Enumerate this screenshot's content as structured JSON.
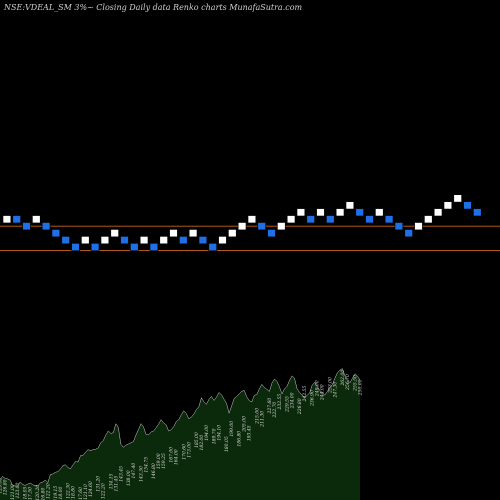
{
  "title": "NSE:VDEAL_SM  3%~  Closing Daily data  Renko  charts MunafaSutra.com",
  "colors": {
    "background": "#000000",
    "brick_up": "#ffffff",
    "brick_down": "#1f6fe6",
    "level_line": "#c8641e",
    "area_fill": "#0b2a0b",
    "area_edge": "#cfcfcf",
    "value_label": "#dddddd"
  },
  "chart_data": [
    {
      "type": "renko",
      "brick_size_pct": 3,
      "series": [
        {
          "name": "bricks",
          "row_values": [
            5,
            5,
            4,
            5,
            4,
            3,
            2,
            1,
            2,
            1,
            2,
            3,
            2,
            1,
            2,
            1,
            2,
            3,
            2,
            3,
            2,
            1,
            2,
            3,
            4,
            5,
            4,
            3,
            4,
            5,
            6,
            5,
            6,
            5,
            6,
            7,
            6,
            5,
            6,
            5,
            4,
            3,
            4,
            5,
            6,
            7,
            8,
            7,
            6
          ],
          "direction": [
            "up",
            "down",
            "down",
            "up",
            "down",
            "down",
            "down",
            "down",
            "up",
            "down",
            "up",
            "up",
            "down",
            "down",
            "up",
            "down",
            "up",
            "up",
            "down",
            "up",
            "down",
            "down",
            "up",
            "up",
            "up",
            "up",
            "down",
            "down",
            "up",
            "up",
            "up",
            "down",
            "up",
            "down",
            "up",
            "up",
            "down",
            "down",
            "up",
            "down",
            "down",
            "down",
            "up",
            "up",
            "up",
            "up",
            "up",
            "down",
            "down"
          ]
        }
      ],
      "levels": [
        {
          "name": "upper-level",
          "value": 4
        },
        {
          "name": "lower-level",
          "value": 0.5
        }
      ]
    },
    {
      "type": "area",
      "series": [
        {
          "name": "close",
          "values": [
            125.1,
            129.0,
            126.8,
            126.0,
            124.5,
            118.0,
            117.5,
            116.8,
            122.0,
            119.15,
            118.0,
            119.5,
            121.0,
            118.8,
            117.6,
            117.2,
            121.1,
            122.2,
            124.6,
            121.4,
            131.2,
            132.2,
            134.15,
            135.0,
            138.0,
            142.5,
            143.45,
            140.0,
            138.5,
            143.3,
            147.4,
            146.8,
            154.75,
            155.0,
            159.0,
            162.0,
            161.0,
            162.0,
            162.5,
            164.0,
            170.6,
            173.0,
            180.0,
            185.0,
            182.0,
            183.0,
            194.0,
            189.7,
            168.8,
            165.0,
            167.5,
            169.0,
            170.5,
            172.0,
            180.05,
            186.8,
            194.1,
            190.15,
            181.0,
            180.2,
            183.8,
            185.0,
            189.0,
            193.45,
            199.0,
            195.0,
            192.6,
            185.0,
            186.55,
            190.4,
            196.6,
            199.0,
            205.0,
            210.0,
            206.5,
            200.05,
            202.1,
            206.0,
            211.3,
            215.0,
            226.0,
            221.0,
            218.0,
            224.0,
            227.6,
            222.7,
            226.8,
            232.55,
            229.55,
            224.0,
            219.1,
            207.0,
            215.9,
            225.05,
            227.5,
            230.75,
            234.0,
            235.0,
            227.3,
            222.5,
            220.8,
            229.0,
            230.0,
            236.9,
            242.55,
            238.75,
            236.4,
            233.7,
            244.0,
            249.0,
            246.2,
            239.6,
            230.8,
            237.0,
            240.0,
            247.3,
            253.0,
            250.0,
            236.9,
            232.6,
            229.1,
            226.4,
            228.9,
            232.2,
            241.5,
            244.9,
            240.0,
            235.0,
            232.6,
            229.2,
            233.5,
            239.0,
            242.0,
            250.0,
            256.7,
            260.0,
            262.0,
            253.0,
            247.9,
            244.5,
            250.0,
            255.5,
            252.5,
            248.0
          ]
        }
      ],
      "annotations": [
        "129.00",
        "126.80",
        "121.00",
        "123.00",
        "118.05",
        "117.50",
        "120.20",
        "116.80",
        "122.20",
        "119.15",
        "118.00",
        "122.30",
        "118.80",
        "117.60",
        "121.10",
        "124.60",
        "131.20",
        "122.20",
        "134.15",
        "131.45",
        "143.45",
        "138.00",
        "147.40",
        "143.30",
        "154.75",
        "146.80",
        "159.00",
        "159.25",
        "167.00",
        "164.00",
        "170.60",
        "173.00",
        "185.00",
        "182.00",
        "194.00",
        "189.70",
        "194.10",
        "180.05",
        "199.00",
        "186.80",
        "205.00",
        "193.45",
        "215.00",
        "211.30",
        "227.60",
        "222.70",
        "232.55",
        "229.55",
        "234.00",
        "226.80",
        "242.55",
        "236.90",
        "249.00",
        "244.00",
        "253.00",
        "247.30",
        "262.00",
        "256.70",
        "255.50",
        "250.00"
      ]
    }
  ]
}
